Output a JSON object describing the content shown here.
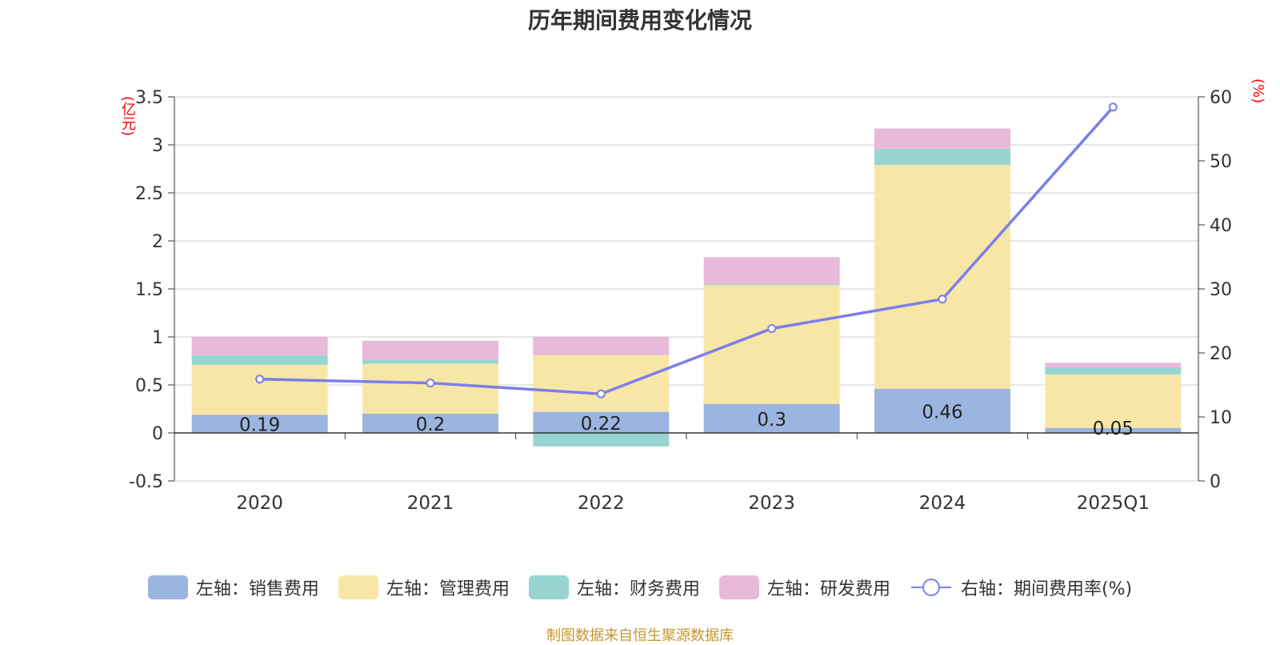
{
  "chart_data": {
    "type": "bar",
    "title": "历年期间费用变化情况",
    "categories": [
      "2020",
      "2021",
      "2022",
      "2023",
      "2024",
      "2025Q1"
    ],
    "stacked": true,
    "left_axis": {
      "unit": "(亿元)",
      "ylim": [
        -0.5,
        3.5
      ],
      "ticks": [
        "-0.5",
        "0",
        "0.5",
        "1",
        "1.5",
        "2",
        "2.5",
        "3",
        "3.5"
      ]
    },
    "right_axis": {
      "unit": "(%)",
      "ylim": [
        0,
        60
      ],
      "ticks": [
        "0",
        "10",
        "20",
        "30",
        "40",
        "50",
        "60"
      ]
    },
    "series": [
      {
        "name": "左轴：销售费用",
        "axis": "left",
        "color": "#9bb5e0",
        "values": [
          0.19,
          0.2,
          0.22,
          0.3,
          0.46,
          0.05
        ],
        "labels": [
          "0.19",
          "0.2",
          "0.22",
          "0.3",
          "0.46",
          "0.05"
        ]
      },
      {
        "name": "左轴：管理费用",
        "axis": "left",
        "color": "#f8e6a7",
        "values": [
          0.52,
          0.52,
          0.59,
          1.24,
          2.33,
          0.56
        ]
      },
      {
        "name": "左轴：财务费用",
        "axis": "left",
        "color": "#97d4d2",
        "values": [
          0.1,
          0.04,
          -0.14,
          0.01,
          0.17,
          0.07
        ]
      },
      {
        "name": "左轴：研发费用",
        "axis": "left",
        "color": "#e8b9d9",
        "values": [
          0.19,
          0.2,
          0.19,
          0.28,
          0.21,
          0.05
        ]
      },
      {
        "name": "右轴：期间费用率(%)",
        "axis": "right",
        "type": "line",
        "color": "#7b7fea",
        "values": [
          15.9,
          15.3,
          13.6,
          23.8,
          28.4,
          58.4
        ]
      }
    ],
    "grid": true,
    "legend_position": "bottom"
  },
  "source_note": "制图数据来自恒生聚源数据库"
}
